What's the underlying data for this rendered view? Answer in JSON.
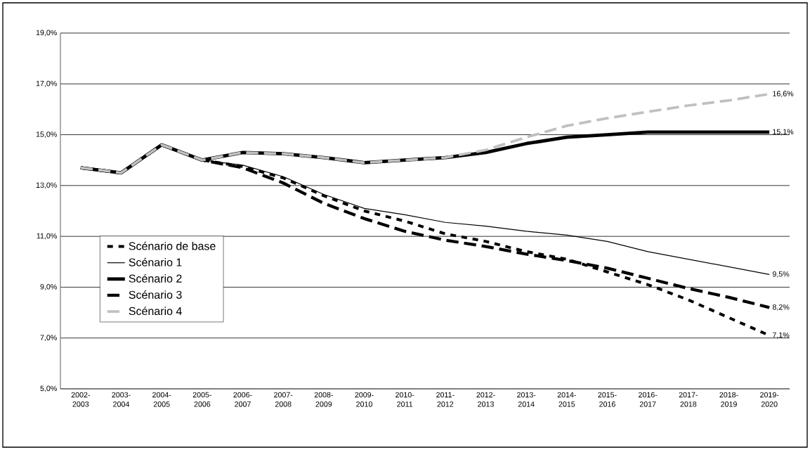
{
  "chart_data": {
    "type": "line",
    "categories": [
      "2002-2003",
      "2003-2004",
      "2004-2005",
      "2005-2006",
      "2006-2007",
      "2007-2008",
      "2008-2009",
      "2009-2010",
      "2010-2011",
      "2011-2012",
      "2012-2013",
      "2013-2014",
      "2014-2015",
      "2015-2016",
      "2016-2017",
      "2017-2018",
      "2018-2019",
      "2019-2020"
    ],
    "series": [
      {
        "name": "Scénario de base",
        "color": "#000000",
        "line_style": "dotted",
        "values": [
          13.7,
          13.5,
          14.6,
          14.0,
          13.75,
          13.3,
          12.6,
          12.0,
          11.6,
          11.1,
          10.8,
          10.4,
          10.1,
          9.6,
          9.1,
          8.5,
          7.8,
          7.1
        ],
        "value_labels": [
          null,
          null,
          null,
          null,
          null,
          null,
          null,
          null,
          null,
          null,
          null,
          null,
          null,
          null,
          null,
          null,
          null,
          "7,1%"
        ]
      },
      {
        "name": "Scénario 1",
        "color": "#000000",
        "line_style": "solid",
        "values": [
          13.7,
          13.5,
          14.6,
          14.0,
          13.8,
          13.35,
          12.65,
          12.1,
          11.85,
          11.55,
          11.4,
          11.2,
          11.05,
          10.8,
          10.4,
          10.1,
          9.8,
          9.5
        ],
        "value_labels": [
          null,
          null,
          null,
          null,
          null,
          null,
          null,
          null,
          null,
          null,
          null,
          null,
          null,
          null,
          null,
          null,
          null,
          "9,5%"
        ]
      },
      {
        "name": "Scénario 2",
        "color": "#000000",
        "line_style": "solid",
        "values": [
          13.7,
          13.5,
          14.6,
          14.0,
          14.3,
          14.25,
          14.1,
          13.9,
          14.0,
          14.1,
          14.3,
          14.65,
          14.9,
          15.0,
          15.1,
          15.1,
          15.1,
          15.1
        ],
        "value_labels": [
          null,
          null,
          null,
          null,
          null,
          null,
          null,
          null,
          null,
          null,
          null,
          null,
          null,
          null,
          null,
          null,
          null,
          "15,1%"
        ]
      },
      {
        "name": "Scénario 3",
        "color": "#000000",
        "line_style": "dashed",
        "values": [
          13.7,
          13.5,
          14.6,
          14.0,
          13.7,
          13.1,
          12.3,
          11.7,
          11.2,
          10.85,
          10.6,
          10.3,
          10.05,
          9.75,
          9.35,
          8.95,
          8.6,
          8.2
        ],
        "value_labels": [
          null,
          null,
          null,
          null,
          null,
          null,
          null,
          null,
          null,
          null,
          null,
          null,
          null,
          null,
          null,
          null,
          null,
          "8,2%"
        ]
      },
      {
        "name": "Scénario 4",
        "color": "#c0c0c0",
        "line_style": "dashed",
        "values": [
          13.7,
          13.5,
          14.6,
          14.0,
          14.3,
          14.25,
          14.1,
          13.9,
          14.0,
          14.1,
          14.4,
          14.9,
          15.35,
          15.65,
          15.9,
          16.15,
          16.35,
          16.6
        ],
        "value_labels": [
          null,
          null,
          null,
          null,
          null,
          null,
          null,
          null,
          null,
          null,
          null,
          null,
          null,
          null,
          null,
          null,
          null,
          "16,6%"
        ]
      }
    ],
    "ylim": [
      5,
      19
    ],
    "yticks": [
      {
        "value": 5,
        "label": "5,0%"
      },
      {
        "value": 7,
        "label": "7,0%"
      },
      {
        "value": 9,
        "label": "9,0%"
      },
      {
        "value": 11,
        "label": "11,0%"
      },
      {
        "value": 13,
        "label": "13,0%"
      },
      {
        "value": 15,
        "label": "15,0%"
      },
      {
        "value": 17,
        "label": "17,0%"
      },
      {
        "value": 19,
        "label": "19,0%"
      }
    ],
    "grid": "y",
    "legend": "bottom left",
    "marker": "none"
  }
}
